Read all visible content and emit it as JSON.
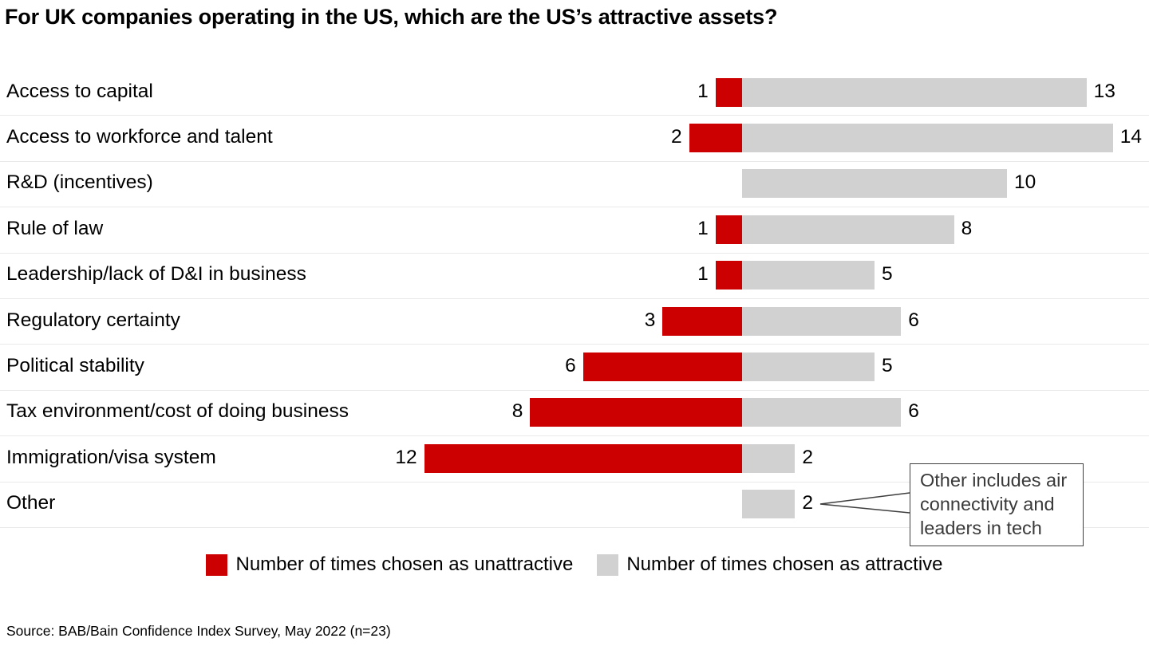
{
  "title": "For UK companies operating in the US, which are the US’s attractive assets?",
  "chart_data": {
    "type": "bar",
    "orientation": "horizontal-diverging",
    "categories": [
      "Access to capital",
      "Access to workforce and talent",
      "R&D (incentives)",
      "Rule of law",
      "Leadership/lack of D&I in business",
      "Regulatory certainty",
      "Political stability",
      "Tax environment/cost of doing business",
      "Immigration/visa system",
      "Other"
    ],
    "series": [
      {
        "name": "Number of times chosen as unattractive",
        "color": "#cc0000",
        "values": [
          1,
          2,
          0,
          1,
          1,
          3,
          6,
          8,
          12,
          0
        ]
      },
      {
        "name": "Number of times chosen as attractive",
        "color": "#d1d1d1",
        "values": [
          13,
          14,
          10,
          8,
          5,
          6,
          5,
          6,
          2,
          2
        ]
      }
    ],
    "value_labels": "outside-ends",
    "grid": "row-dividers-only",
    "legend_position": "bottom-center",
    "annotation": {
      "text": "Other includes air connectivity and leaders in tech",
      "target_category": "Other",
      "target_value": 2
    }
  },
  "legend": {
    "unattractive_label": "Number of times chosen as unattractive",
    "attractive_label": "Number of times chosen as attractive"
  },
  "annotation_text": "Other includes air connectivity and leaders in tech",
  "source": "Source: BAB/Bain Confidence Index Survey, May 2022 (n=23)",
  "colors": {
    "unattractive": "#cc0000",
    "attractive": "#d1d1d1",
    "divider": "#e9e9e9",
    "annotation_border": "#3f3f3f",
    "text": "#000000"
  }
}
